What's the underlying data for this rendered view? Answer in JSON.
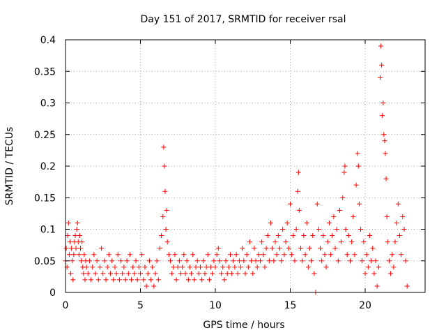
{
  "chart_data": {
    "type": "scatter",
    "title": "Day 151 of 2017, SRMTID for receiver rsal",
    "xlabel": "GPS time / hours",
    "ylabel": "SRMTID / TECUs",
    "xlim": [
      0,
      24
    ],
    "ylim": [
      0,
      0.4
    ],
    "xticks": [
      0,
      5,
      10,
      15,
      20
    ],
    "xtick_labels": [
      "0",
      "5",
      "10",
      "15",
      "20"
    ],
    "yticks": [
      0,
      0.05,
      0.1,
      0.15,
      0.2,
      0.25,
      0.3,
      0.35,
      0.4
    ],
    "ytick_labels": [
      "0",
      "0.05",
      "0.1",
      "0.15",
      "0.2",
      "0.25",
      "0.3",
      "0.35",
      "0.4"
    ],
    "grid": true,
    "marker": "+",
    "color": "#ff0000",
    "series": [
      {
        "points": [
          [
            0.0,
            0.05
          ],
          [
            0.05,
            0.07
          ],
          [
            0.1,
            0.04
          ],
          [
            0.15,
            0.09
          ],
          [
            0.2,
            0.11
          ],
          [
            0.25,
            0.06
          ],
          [
            0.3,
            0.08
          ],
          [
            0.35,
            0.03
          ],
          [
            0.4,
            0.07
          ],
          [
            0.45,
            0.05
          ],
          [
            0.5,
            0.02
          ],
          [
            0.55,
            0.06
          ],
          [
            0.6,
            0.08
          ],
          [
            0.65,
            0.09
          ],
          [
            0.7,
            0.07
          ],
          [
            0.75,
            0.1
          ],
          [
            0.8,
            0.11
          ],
          [
            0.85,
            0.08
          ],
          [
            0.9,
            0.06
          ],
          [
            0.95,
            0.09
          ],
          [
            1.0,
            0.07
          ],
          [
            1.05,
            0.05
          ],
          [
            1.1,
            0.08
          ],
          [
            1.15,
            0.04
          ],
          [
            1.2,
            0.03
          ],
          [
            1.25,
            0.06
          ],
          [
            1.3,
            0.02
          ],
          [
            1.35,
            0.05
          ],
          [
            1.4,
            0.04
          ],
          [
            1.5,
            0.03
          ],
          [
            1.6,
            0.05
          ],
          [
            1.7,
            0.02
          ],
          [
            1.8,
            0.04
          ],
          [
            1.9,
            0.06
          ],
          [
            2.0,
            0.03
          ],
          [
            2.1,
            0.05
          ],
          [
            2.2,
            0.02
          ],
          [
            2.3,
            0.04
          ],
          [
            2.4,
            0.07
          ],
          [
            2.5,
            0.03
          ],
          [
            2.6,
            0.05
          ],
          [
            2.7,
            0.02
          ],
          [
            2.8,
            0.04
          ],
          [
            2.9,
            0.06
          ],
          [
            3.0,
            0.03
          ],
          [
            3.1,
            0.05
          ],
          [
            3.2,
            0.02
          ],
          [
            3.3,
            0.04
          ],
          [
            3.4,
            0.03
          ],
          [
            3.5,
            0.06
          ],
          [
            3.6,
            0.02
          ],
          [
            3.7,
            0.05
          ],
          [
            3.8,
            0.03
          ],
          [
            3.9,
            0.04
          ],
          [
            4.0,
            0.02
          ],
          [
            4.1,
            0.05
          ],
          [
            4.2,
            0.03
          ],
          [
            4.3,
            0.06
          ],
          [
            4.4,
            0.02
          ],
          [
            4.5,
            0.04
          ],
          [
            4.6,
            0.03
          ],
          [
            4.7,
            0.05
          ],
          [
            4.8,
            0.02
          ],
          [
            4.9,
            0.04
          ],
          [
            5.0,
            0.03
          ],
          [
            5.1,
            0.06
          ],
          [
            5.2,
            0.02
          ],
          [
            5.3,
            0.04
          ],
          [
            5.4,
            0.01
          ],
          [
            5.5,
            0.03
          ],
          [
            5.6,
            0.05
          ],
          [
            5.7,
            0.02
          ],
          [
            5.8,
            0.04
          ],
          [
            5.9,
            0.01
          ],
          [
            6.0,
            0.03
          ],
          [
            6.1,
            0.05
          ],
          [
            6.2,
            0.02
          ],
          [
            6.3,
            0.07
          ],
          [
            6.4,
            0.09
          ],
          [
            6.5,
            0.12
          ],
          [
            6.55,
            0.23
          ],
          [
            6.6,
            0.2
          ],
          [
            6.65,
            0.16
          ],
          [
            6.7,
            0.1
          ],
          [
            6.75,
            0.13
          ],
          [
            6.8,
            0.08
          ],
          [
            6.9,
            0.06
          ],
          [
            7.0,
            0.05
          ],
          [
            7.1,
            0.03
          ],
          [
            7.2,
            0.04
          ],
          [
            7.3,
            0.06
          ],
          [
            7.4,
            0.02
          ],
          [
            7.5,
            0.04
          ],
          [
            7.6,
            0.05
          ],
          [
            7.7,
            0.03
          ],
          [
            7.8,
            0.04
          ],
          [
            7.9,
            0.06
          ],
          [
            8.0,
            0.03
          ],
          [
            8.1,
            0.05
          ],
          [
            8.2,
            0.02
          ],
          [
            8.3,
            0.04
          ],
          [
            8.4,
            0.03
          ],
          [
            8.5,
            0.06
          ],
          [
            8.6,
            0.02
          ],
          [
            8.7,
            0.04
          ],
          [
            8.8,
            0.05
          ],
          [
            8.9,
            0.03
          ],
          [
            9.0,
            0.04
          ],
          [
            9.1,
            0.02
          ],
          [
            9.2,
            0.05
          ],
          [
            9.3,
            0.03
          ],
          [
            9.4,
            0.04
          ],
          [
            9.5,
            0.06
          ],
          [
            9.6,
            0.02
          ],
          [
            9.7,
            0.04
          ],
          [
            9.8,
            0.03
          ],
          [
            9.9,
            0.05
          ],
          [
            10.0,
            0.04
          ],
          [
            10.1,
            0.06
          ],
          [
            10.2,
            0.07
          ],
          [
            10.3,
            0.05
          ],
          [
            10.4,
            0.03
          ],
          [
            10.5,
            0.04
          ],
          [
            10.6,
            0.02
          ],
          [
            10.7,
            0.05
          ],
          [
            10.8,
            0.03
          ],
          [
            10.9,
            0.04
          ],
          [
            11.0,
            0.06
          ],
          [
            11.1,
            0.03
          ],
          [
            11.2,
            0.05
          ],
          [
            11.3,
            0.04
          ],
          [
            11.4,
            0.06
          ],
          [
            11.5,
            0.03
          ],
          [
            11.6,
            0.05
          ],
          [
            11.7,
            0.04
          ],
          [
            11.8,
            0.07
          ],
          [
            11.9,
            0.05
          ],
          [
            12.0,
            0.03
          ],
          [
            12.1,
            0.06
          ],
          [
            12.2,
            0.04
          ],
          [
            12.3,
            0.08
          ],
          [
            12.4,
            0.05
          ],
          [
            12.5,
            0.03
          ],
          [
            12.6,
            0.07
          ],
          [
            12.7,
            0.05
          ],
          [
            12.8,
            0.04
          ],
          [
            12.9,
            0.06
          ],
          [
            13.0,
            0.05
          ],
          [
            13.1,
            0.08
          ],
          [
            13.2,
            0.06
          ],
          [
            13.3,
            0.04
          ],
          [
            13.4,
            0.07
          ],
          [
            13.5,
            0.09
          ],
          [
            13.6,
            0.05
          ],
          [
            13.7,
            0.11
          ],
          [
            13.8,
            0.07
          ],
          [
            13.9,
            0.05
          ],
          [
            14.0,
            0.08
          ],
          [
            14.1,
            0.06
          ],
          [
            14.2,
            0.09
          ],
          [
            14.3,
            0.07
          ],
          [
            14.4,
            0.05
          ],
          [
            14.5,
            0.1
          ],
          [
            14.6,
            0.06
          ],
          [
            14.7,
            0.08
          ],
          [
            14.8,
            0.11
          ],
          [
            14.9,
            0.07
          ],
          [
            15.0,
            0.14
          ],
          [
            15.1,
            0.06
          ],
          [
            15.2,
            0.09
          ],
          [
            15.3,
            0.05
          ],
          [
            15.4,
            0.1
          ],
          [
            15.5,
            0.16
          ],
          [
            15.55,
            0.19
          ],
          [
            15.6,
            0.13
          ],
          [
            15.7,
            0.07
          ],
          [
            15.8,
            0.05
          ],
          [
            15.9,
            0.09
          ],
          [
            16.0,
            0.06
          ],
          [
            16.1,
            0.11
          ],
          [
            16.2,
            0.04
          ],
          [
            16.3,
            0.07
          ],
          [
            16.4,
            0.05
          ],
          [
            16.5,
            0.09
          ],
          [
            16.6,
            0.03
          ],
          [
            16.7,
            0.0
          ],
          [
            16.8,
            0.14
          ],
          [
            16.9,
            0.1
          ],
          [
            17.0,
            0.07
          ],
          [
            17.1,
            0.05
          ],
          [
            17.2,
            0.09
          ],
          [
            17.3,
            0.06
          ],
          [
            17.4,
            0.04
          ],
          [
            17.5,
            0.08
          ],
          [
            17.6,
            0.11
          ],
          [
            17.7,
            0.06
          ],
          [
            17.8,
            0.09
          ],
          [
            17.9,
            0.12
          ],
          [
            18.0,
            0.07
          ],
          [
            18.1,
            0.1
          ],
          [
            18.2,
            0.05
          ],
          [
            18.3,
            0.13
          ],
          [
            18.4,
            0.08
          ],
          [
            18.5,
            0.15
          ],
          [
            18.6,
            0.19
          ],
          [
            18.65,
            0.2
          ],
          [
            18.7,
            0.1
          ],
          [
            18.8,
            0.06
          ],
          [
            18.9,
            0.09
          ],
          [
            19.0,
            0.05
          ],
          [
            19.1,
            0.08
          ],
          [
            19.2,
            0.12
          ],
          [
            19.3,
            0.06
          ],
          [
            19.4,
            0.17
          ],
          [
            19.5,
            0.22
          ],
          [
            19.55,
            0.2
          ],
          [
            19.6,
            0.14
          ],
          [
            19.7,
            0.1
          ],
          [
            19.8,
            0.05
          ],
          [
            19.9,
            0.08
          ],
          [
            20.0,
            0.03
          ],
          [
            20.1,
            0.06
          ],
          [
            20.2,
            0.04
          ],
          [
            20.3,
            0.09
          ],
          [
            20.4,
            0.05
          ],
          [
            20.5,
            0.07
          ],
          [
            20.6,
            0.03
          ],
          [
            20.7,
            0.05
          ],
          [
            20.8,
            0.01
          ],
          [
            20.9,
            0.04
          ],
          [
            21.0,
            0.34
          ],
          [
            21.05,
            0.39
          ],
          [
            21.1,
            0.36
          ],
          [
            21.15,
            0.28
          ],
          [
            21.2,
            0.3
          ],
          [
            21.25,
            0.25
          ],
          [
            21.3,
            0.24
          ],
          [
            21.35,
            0.22
          ],
          [
            21.4,
            0.18
          ],
          [
            21.45,
            0.12
          ],
          [
            21.5,
            0.08
          ],
          [
            21.6,
            0.05
          ],
          [
            21.7,
            0.03
          ],
          [
            21.8,
            0.06
          ],
          [
            21.9,
            0.04
          ],
          [
            22.0,
            0.08
          ],
          [
            22.1,
            0.11
          ],
          [
            22.2,
            0.14
          ],
          [
            22.3,
            0.09
          ],
          [
            22.4,
            0.06
          ],
          [
            22.5,
            0.12
          ],
          [
            22.6,
            0.1
          ],
          [
            22.7,
            0.05
          ],
          [
            22.8,
            0.01
          ]
        ]
      }
    ]
  }
}
